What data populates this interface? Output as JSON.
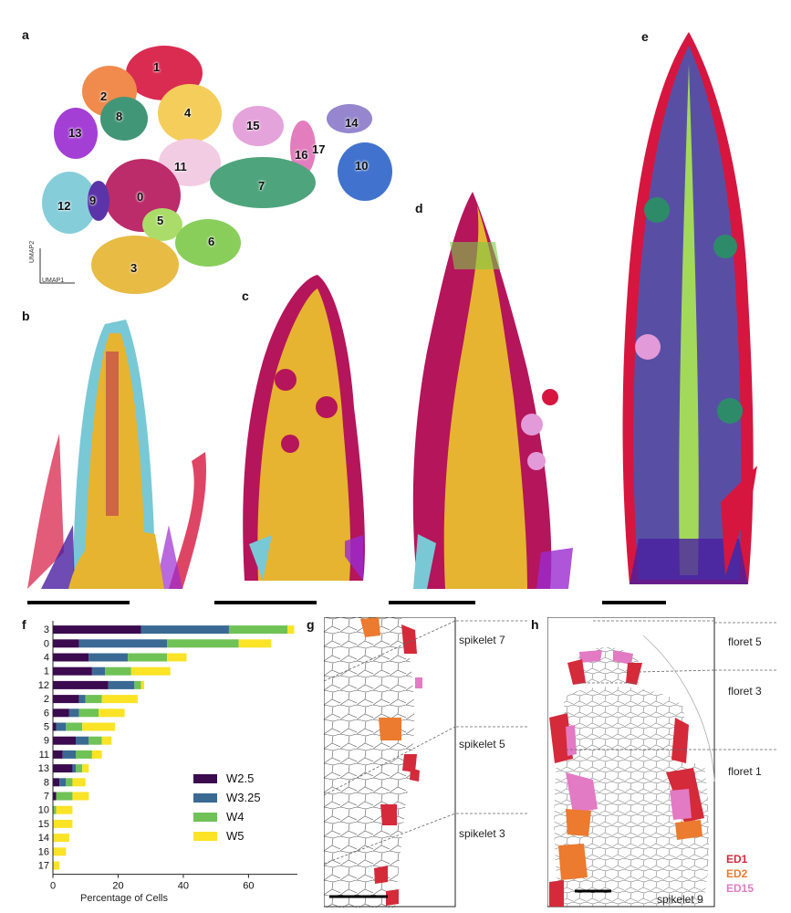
{
  "panel_labels": {
    "a": "a",
    "b": "b",
    "c": "c",
    "d": "d",
    "e": "e",
    "f": "f",
    "g": "g",
    "h": "h"
  },
  "umap": {
    "x_axis": "UMAP1",
    "y_axis": "UMAP2",
    "clusters": [
      {
        "id": "1",
        "color": "#d6163f"
      },
      {
        "id": "2",
        "color": "#ef7f3a"
      },
      {
        "id": "8",
        "color": "#2e8b6a"
      },
      {
        "id": "4",
        "color": "#f4c84a"
      },
      {
        "id": "13",
        "color": "#9b2bd1"
      },
      {
        "id": "15",
        "color": "#e39ad8"
      },
      {
        "id": "14",
        "color": "#8a79c9"
      },
      {
        "id": "16",
        "color": "#e070b8"
      },
      {
        "id": "17",
        "color": "#d56fb5"
      },
      {
        "id": "10",
        "color": "#2d63c8"
      },
      {
        "id": "11",
        "color": "#f0c7e0"
      },
      {
        "id": "0",
        "color": "#b5155a"
      },
      {
        "id": "12",
        "color": "#79c8d6"
      },
      {
        "id": "9",
        "color": "#4a1fa0"
      },
      {
        "id": "7",
        "color": "#3b9b6e"
      },
      {
        "id": "5",
        "color": "#a3d95a"
      },
      {
        "id": "6",
        "color": "#7dc94a"
      },
      {
        "id": "3",
        "color": "#e6b430"
      }
    ]
  },
  "chart_data": {
    "type": "bar",
    "stacked": true,
    "orientation": "horizontal",
    "categories": [
      "3",
      "0",
      "4",
      "1",
      "12",
      "2",
      "6",
      "5",
      "9",
      "11",
      "13",
      "8",
      "7",
      "10",
      "15",
      "14",
      "16",
      "17"
    ],
    "series": [
      {
        "name": "W2.5",
        "color": "#3b0a4f",
        "values": [
          27,
          8,
          11,
          12,
          17,
          8,
          5,
          1,
          7,
          3,
          6,
          2,
          1,
          0,
          0,
          0,
          0,
          0
        ]
      },
      {
        "name": "W3.25",
        "color": "#3a6a94",
        "values": [
          27,
          27,
          12,
          4,
          8,
          2,
          3,
          3,
          4,
          4,
          1,
          2,
          0,
          0,
          0,
          0,
          0,
          0
        ]
      },
      {
        "name": "W4",
        "color": "#6fc256",
        "values": [
          18,
          22,
          12,
          8,
          2,
          5,
          6,
          5,
          4,
          5,
          2,
          2,
          5,
          1,
          0,
          0,
          0,
          0
        ]
      },
      {
        "name": "W5",
        "color": "#fbe326",
        "values": [
          2,
          10,
          6,
          12,
          1,
          11,
          8,
          10,
          3,
          3,
          2,
          4,
          5,
          5,
          6,
          5,
          4,
          2
        ]
      }
    ],
    "xlabel": "Percentage of Cells",
    "ylabel": "",
    "xlim": [
      0,
      75
    ],
    "xticks": [
      0,
      20,
      40,
      60
    ],
    "legend_position": "center-right"
  },
  "panel_g": {
    "annotations": [
      "spikelet 7",
      "spikelet 5",
      "spikelet 3"
    ]
  },
  "panel_h": {
    "annotations": [
      "floret 5",
      "floret 3",
      "floret 1",
      "spikelet 9"
    ]
  },
  "ed_legend": [
    {
      "label": "ED1",
      "color": "#d42a3a"
    },
    {
      "label": "ED2",
      "color": "#ec7a2f"
    },
    {
      "label": "ED15",
      "color": "#e27ac4"
    }
  ]
}
